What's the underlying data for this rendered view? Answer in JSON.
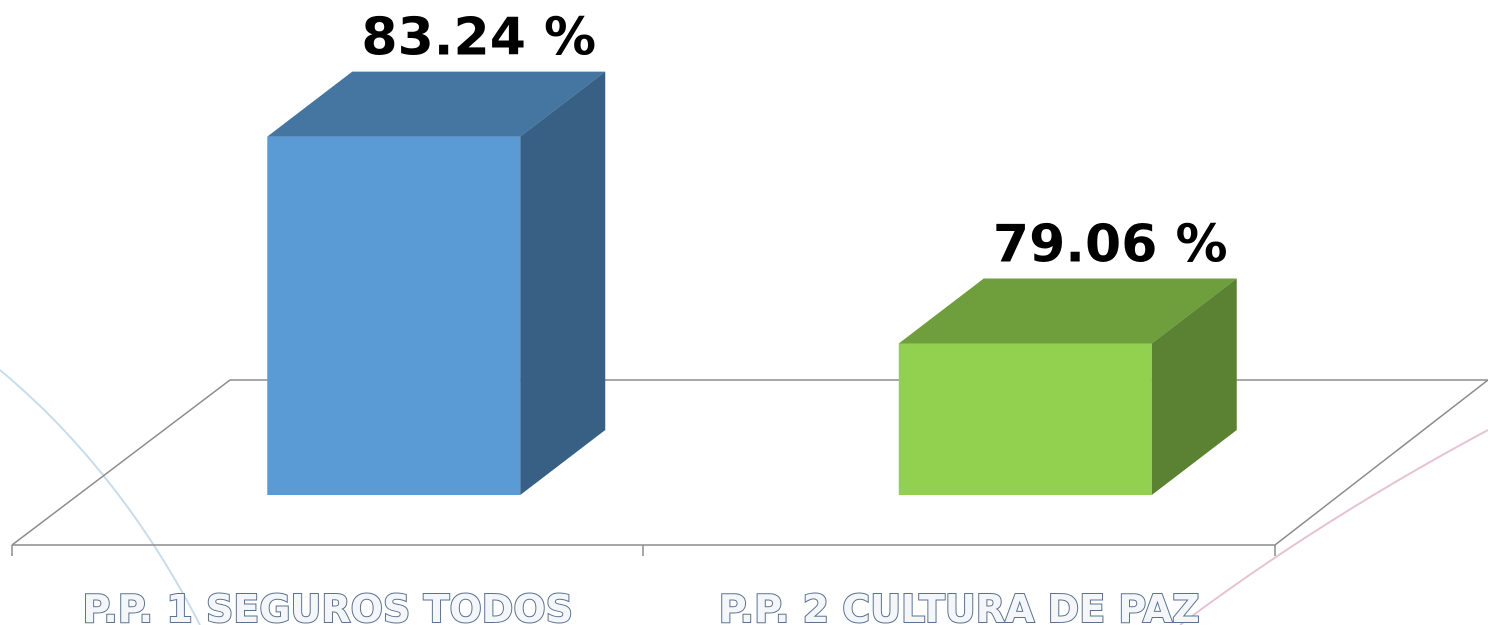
{
  "chart_data": {
    "type": "bar3d",
    "categories": [
      "P.P. 1 SEGUROS TODOS",
      "P.P. 2 CULTURA DE PAZ"
    ],
    "values": [
      83.24,
      79.06
    ],
    "value_labels": [
      "83.24 %",
      "79.06 %"
    ],
    "colors": [
      "#5b9bd5",
      "#92d050"
    ],
    "ylim": [
      76,
      84
    ]
  }
}
